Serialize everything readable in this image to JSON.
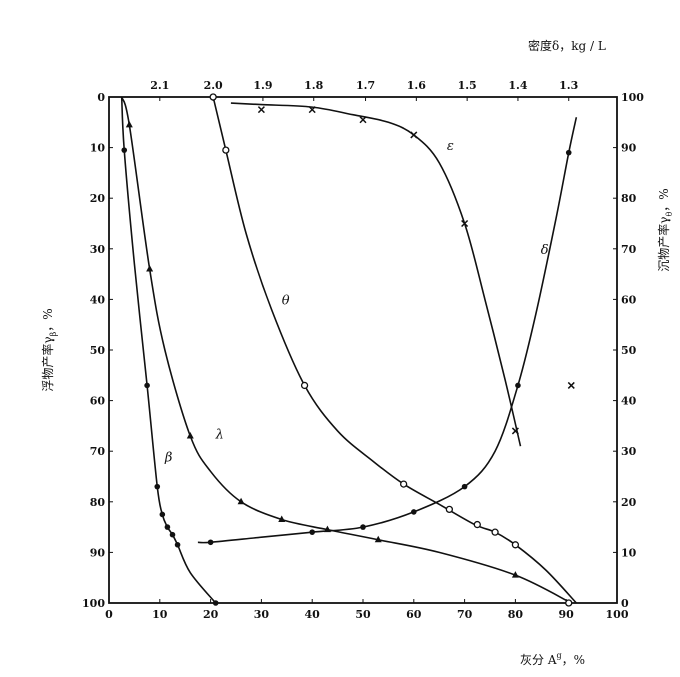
{
  "chart_data": {
    "type": "line",
    "title": "",
    "xlabel": "灰分 A",
    "xlabel_sup": "g",
    "xlabel_unit": "，%",
    "ylabel_left": "浮物产率γ",
    "ylabel_left_sub": "β",
    "ylabel_left_unit": "，%",
    "ylabel_right": "沉物产率γ",
    "ylabel_right_sub": "θ",
    "ylabel_right_unit": "，%",
    "top_axis_label": "密度δ，kg / L",
    "xlim": [
      0,
      100
    ],
    "ylim_left": [
      0,
      100
    ],
    "ylim_left_direction": "top-to-bottom",
    "ylim_right": [
      100,
      0
    ],
    "x_ticks": [
      0,
      10,
      20,
      30,
      40,
      50,
      60,
      70,
      80,
      90,
      100
    ],
    "y_left_ticks": [
      0,
      10,
      20,
      30,
      40,
      50,
      60,
      70,
      80,
      90,
      100
    ],
    "y_right_ticks": [
      100,
      90,
      80,
      70,
      60,
      50,
      40,
      30,
      20,
      10,
      0
    ],
    "density_ticks": [
      {
        "label": "2.1",
        "at_ash": 10
      },
      {
        "label": "2.0",
        "at_ash": 20.5
      },
      {
        "label": "1.9",
        "at_ash": 30.3
      },
      {
        "label": "1.8",
        "at_ash": 40.3
      },
      {
        "label": "1.7",
        "at_ash": 50.5
      },
      {
        "label": "1.6",
        "at_ash": 60.5
      },
      {
        "label": "1.5",
        "at_ash": 70.5
      },
      {
        "label": "1.4",
        "at_ash": 80.5
      },
      {
        "label": "1.3",
        "at_ash": 90.5
      }
    ],
    "grid": false,
    "series": [
      {
        "name": "β",
        "marker": "dot",
        "label_at": [
          11,
          72
        ],
        "curve": [
          [
            2.5,
            0
          ],
          [
            3,
            10.5
          ],
          [
            5,
            33
          ],
          [
            7.5,
            57
          ],
          [
            9.5,
            77
          ],
          [
            10.5,
            82.5
          ],
          [
            11.5,
            85
          ],
          [
            12.5,
            86.5
          ],
          [
            13.5,
            88.5
          ],
          [
            16,
            94
          ],
          [
            21,
            100
          ]
        ],
        "points": [
          [
            3,
            10.5
          ],
          [
            7.5,
            57
          ],
          [
            9.5,
            77
          ],
          [
            10.5,
            82.5
          ],
          [
            11.5,
            85
          ],
          [
            12.5,
            86.5
          ],
          [
            13.5,
            88.5
          ],
          [
            21,
            100
          ]
        ]
      },
      {
        "name": "λ",
        "marker": "triangle",
        "label_at": [
          21,
          67.5
        ],
        "curve": [
          [
            2.5,
            0
          ],
          [
            4,
            5.5
          ],
          [
            8,
            34
          ],
          [
            11,
            50
          ],
          [
            16,
            67
          ],
          [
            20,
            74
          ],
          [
            26,
            80
          ],
          [
            34,
            83.5
          ],
          [
            43,
            85.5
          ],
          [
            53,
            87.5
          ],
          [
            65,
            90
          ],
          [
            80,
            94.5
          ],
          [
            91,
            100
          ]
        ],
        "points": [
          [
            4,
            5.5
          ],
          [
            8,
            34
          ],
          [
            16,
            67
          ],
          [
            26,
            80
          ],
          [
            34,
            83.5
          ],
          [
            43,
            85.5
          ],
          [
            53,
            87.5
          ],
          [
            80,
            94.5
          ]
        ]
      },
      {
        "name": "θ",
        "marker": "circle",
        "label_at": [
          34,
          41
        ],
        "curve": [
          [
            20.5,
            0
          ],
          [
            23,
            10.5
          ],
          [
            27,
            27
          ],
          [
            32,
            42
          ],
          [
            38.5,
            57
          ],
          [
            45,
            66
          ],
          [
            52,
            72
          ],
          [
            58,
            76.5
          ],
          [
            65,
            80.5
          ],
          [
            72,
            84.5
          ],
          [
            76,
            86
          ],
          [
            80,
            88.5
          ],
          [
            86,
            93.5
          ],
          [
            92,
            100
          ]
        ],
        "points": [
          [
            20.5,
            0
          ],
          [
            23,
            10.5
          ],
          [
            38.5,
            57
          ],
          [
            58,
            76.5
          ],
          [
            67,
            81.5
          ],
          [
            72.5,
            84.5
          ],
          [
            76,
            86
          ],
          [
            80,
            88.5
          ],
          [
            90.5,
            100
          ]
        ]
      },
      {
        "name": "δ",
        "marker": "circle-filled",
        "label_at": [
          85,
          31
        ],
        "curve": [
          [
            17.5,
            88
          ],
          [
            20,
            88
          ],
          [
            30,
            87
          ],
          [
            40,
            86
          ],
          [
            50,
            85
          ],
          [
            60,
            82
          ],
          [
            70,
            77
          ],
          [
            76,
            70
          ],
          [
            80.5,
            57
          ],
          [
            84,
            43
          ],
          [
            88,
            24
          ],
          [
            90.5,
            11
          ],
          [
            92,
            4
          ]
        ],
        "points": [
          [
            20,
            88
          ],
          [
            40,
            86
          ],
          [
            50,
            85
          ],
          [
            60,
            82
          ],
          [
            70,
            77
          ],
          [
            80.5,
            57
          ],
          [
            90.5,
            11
          ]
        ]
      },
      {
        "name": "ε",
        "marker": "cross",
        "label_at": [
          66.5,
          10.5
        ],
        "curve": [
          [
            24,
            1.2
          ],
          [
            30,
            1.5
          ],
          [
            40,
            2
          ],
          [
            48,
            3.5
          ],
          [
            55,
            5
          ],
          [
            60,
            7.5
          ],
          [
            65,
            13
          ],
          [
            70,
            25
          ],
          [
            74,
            40
          ],
          [
            78,
            56
          ],
          [
            81,
            69
          ]
        ],
        "points": [
          [
            30,
            2.5
          ],
          [
            40,
            2.5
          ],
          [
            50,
            4.5
          ],
          [
            60,
            7.5
          ],
          [
            70,
            25
          ],
          [
            80,
            66
          ],
          [
            91,
            57
          ]
        ]
      }
    ]
  }
}
